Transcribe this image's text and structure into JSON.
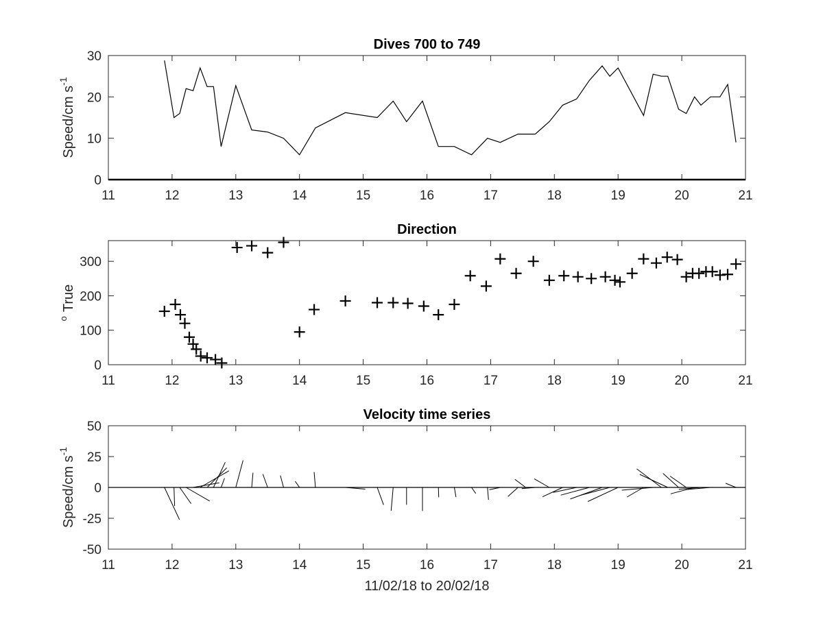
{
  "chart_data": [
    {
      "type": "line",
      "title": "Dives 700 to 749",
      "xlabel": "",
      "ylabel": "Speed/cm s",
      "ylabel_superscript": "-1",
      "xlim": [
        11,
        21
      ],
      "ylim": [
        0,
        30
      ],
      "xticks": [
        "11",
        "12",
        "13",
        "14",
        "15",
        "16",
        "17",
        "18",
        "19",
        "20",
        "21"
      ],
      "yticks": [
        "0",
        "10",
        "20",
        "30"
      ],
      "grid": false,
      "series": [
        {
          "x": [
            11.88,
            12.03,
            12.12,
            12.22,
            12.33,
            12.44,
            12.55,
            12.65,
            12.77,
            13.0,
            13.25,
            13.5,
            13.75,
            14.0,
            14.25,
            14.72,
            15.22,
            15.47,
            15.68,
            15.93,
            16.18,
            16.43,
            16.7,
            16.95,
            17.15,
            17.43,
            17.55,
            17.7,
            17.92,
            18.13,
            18.35,
            18.55,
            18.75,
            18.87,
            19.0,
            19.4,
            19.55,
            19.68,
            19.78,
            19.95,
            20.07,
            20.2,
            20.3,
            20.45,
            20.6,
            20.72,
            20.85
          ],
          "y": [
            28.8,
            15.0,
            16.0,
            22.0,
            21.5,
            27.0,
            22.5,
            22.5,
            8.0,
            22.7,
            12.0,
            11.5,
            10.0,
            6.0,
            12.5,
            16.2,
            15.0,
            19.0,
            14.0,
            19.0,
            8.0,
            8.0,
            6.0,
            10.0,
            9.0,
            11.0,
            11.0,
            11.0,
            14.0,
            18.0,
            19.5,
            24.0,
            27.5,
            25.0,
            27.0,
            15.5,
            25.5,
            25.0,
            25.0,
            17.0,
            16.0,
            20.0,
            18.0,
            20.0,
            20.0,
            23.0,
            9.0
          ]
        }
      ]
    },
    {
      "type": "scatter",
      "title": "Direction",
      "xlabel": "",
      "ylabel": "True",
      "ylabel_superscript": "o",
      "marker": "+",
      "xlim": [
        11,
        21
      ],
      "ylim": [
        0,
        360
      ],
      "xticks": [
        "11",
        "12",
        "13",
        "14",
        "15",
        "16",
        "17",
        "18",
        "19",
        "20",
        "21"
      ],
      "yticks": [
        "0",
        "100",
        "200",
        "300"
      ],
      "grid": false,
      "series": [
        {
          "x": [
            11.88,
            12.05,
            12.13,
            12.2,
            12.27,
            12.33,
            12.38,
            12.45,
            12.55,
            12.68,
            12.78,
            13.02,
            13.25,
            13.5,
            13.75,
            14.0,
            14.23,
            14.72,
            15.22,
            15.47,
            15.7,
            15.95,
            16.18,
            16.43,
            16.68,
            16.93,
            17.15,
            17.4,
            17.67,
            17.92,
            18.15,
            18.37,
            18.58,
            18.8,
            18.95,
            19.03,
            19.22,
            19.4,
            19.6,
            19.77,
            19.93,
            20.07,
            20.17,
            20.27,
            20.38,
            20.48,
            20.6,
            20.72,
            20.85
          ],
          "y": [
            155,
            175,
            145,
            120,
            80,
            60,
            45,
            25,
            20,
            15,
            5,
            340,
            345,
            325,
            355,
            95,
            160,
            185,
            180,
            180,
            178,
            170,
            145,
            175,
            258,
            228,
            307,
            265,
            300,
            245,
            258,
            255,
            250,
            255,
            245,
            240,
            265,
            307,
            295,
            312,
            305,
            255,
            265,
            265,
            270,
            270,
            260,
            262,
            292
          ]
        }
      ]
    },
    {
      "type": "line",
      "subtype": "stick",
      "title": "Velocity time series",
      "xlabel": "11/02/18 to 20/02/18",
      "ylabel": "Speed/cm s",
      "ylabel_superscript": "-1",
      "xlim": [
        11,
        21
      ],
      "ylim": [
        -50,
        50
      ],
      "xticks": [
        "11",
        "12",
        "13",
        "14",
        "15",
        "16",
        "17",
        "18",
        "19",
        "20",
        "21"
      ],
      "yticks": [
        "-50",
        "-25",
        "0",
        "25",
        "50"
      ],
      "grid": false,
      "baseline": 0,
      "sticks": {
        "x": [
          11.88,
          12.03,
          12.12,
          12.22,
          12.33,
          12.44,
          12.55,
          12.65,
          12.77,
          13.0,
          13.25,
          13.5,
          13.75,
          14.0,
          14.25,
          14.72,
          15.22,
          15.47,
          15.68,
          15.93,
          16.18,
          16.43,
          16.7,
          16.95,
          17.15,
          17.43,
          17.55,
          17.7,
          17.92,
          18.13,
          18.35,
          18.55,
          18.75,
          18.87,
          19.0,
          19.4,
          19.55,
          19.68,
          19.78,
          19.95,
          20.07,
          20.2,
          20.3,
          20.45,
          20.6,
          20.72,
          20.85
        ],
        "speed": [
          28.8,
          15.0,
          16.0,
          22.0,
          21.5,
          27.0,
          22.5,
          22.5,
          8.0,
          22.7,
          12.0,
          11.5,
          10.0,
          6.0,
          12.5,
          16.2,
          15.0,
          19.0,
          14.0,
          19.0,
          8.0,
          8.0,
          6.0,
          10.0,
          9.0,
          11.0,
          11.0,
          11.0,
          14.0,
          18.0,
          19.5,
          24.0,
          27.5,
          25.0,
          27.0,
          15.5,
          25.5,
          25.0,
          25.0,
          17.0,
          16.0,
          20.0,
          18.0,
          20.0,
          20.0,
          23.0,
          9.0
        ],
        "direction": [
          155,
          178,
          145,
          120,
          80,
          60,
          45,
          25,
          20,
          15,
          5,
          340,
          345,
          325,
          355,
          95,
          160,
          185,
          180,
          180,
          178,
          170,
          145,
          175,
          258,
          228,
          307,
          265,
          300,
          245,
          258,
          255,
          250,
          255,
          245,
          240,
          265,
          307,
          295,
          312,
          305,
          255,
          265,
          265,
          270,
          270,
          292
        ]
      }
    }
  ]
}
